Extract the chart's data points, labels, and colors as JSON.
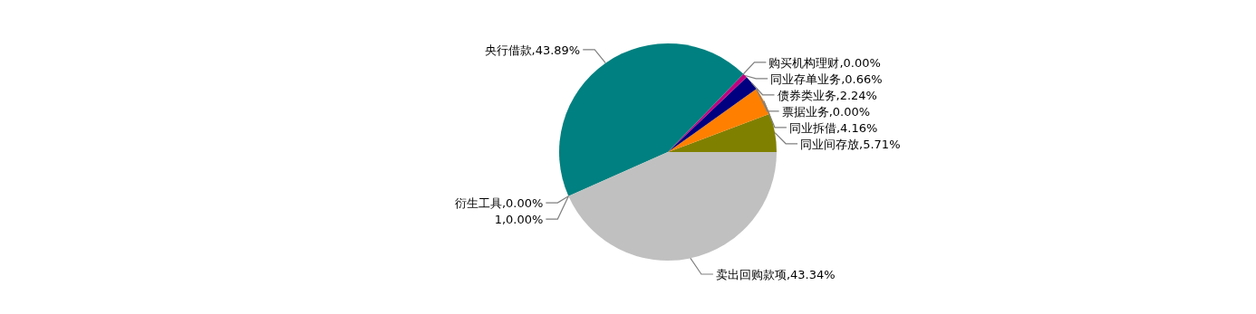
{
  "chart_data": {
    "type": "pie",
    "categories": [
      "同业间存放",
      "同业拆借",
      "票据业务",
      "债券类业务",
      "同业存单业务",
      "购买机构理财",
      "央行借款",
      "衍生工具",
      "1",
      "卖出回购款项"
    ],
    "values": [
      5.71,
      4.16,
      0.0,
      2.24,
      0.66,
      0.0,
      43.89,
      0.0,
      0.0,
      43.34
    ],
    "value_labels": [
      ",5.71%",
      ",4.16%",
      ",0.00%",
      ",2.24%",
      ",0.66%",
      ",0.00%",
      ",43.89%",
      ",0.00%",
      ",0.00%",
      ",43.34%"
    ],
    "colors": [
      "#808000",
      "#ff8000",
      null,
      "#000080",
      "#c0007f",
      null,
      "#008080",
      null,
      null,
      "#c0c0c0"
    ]
  }
}
